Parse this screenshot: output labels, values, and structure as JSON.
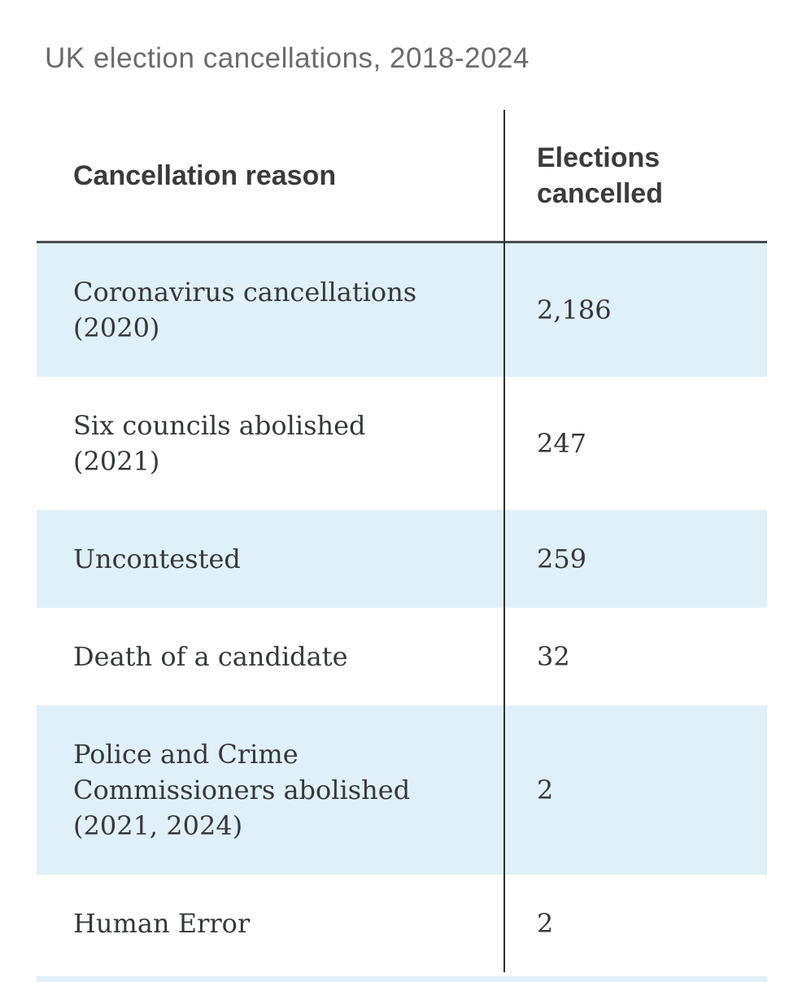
{
  "title": "UK election cancellations, 2018-2024",
  "table": {
    "header": {
      "reason_label": "Cancellation reason",
      "value_label": "Elections\ncancelled"
    },
    "rows": [
      {
        "reason": "Coronavirus cancellations\n(2020)",
        "value": "2,186",
        "highlighted": true
      },
      {
        "reason": "Six councils abolished\n(2021)",
        "value": "247",
        "highlighted": false
      },
      {
        "reason": "Uncontested",
        "value": "259",
        "highlighted": true
      },
      {
        "reason": "Death of a candidate",
        "value": "32",
        "highlighted": false
      },
      {
        "reason": "Police and Crime\nCommissioners abolished\n(2021, 2024)",
        "value": "2",
        "highlighted": true
      },
      {
        "reason": "Human Error",
        "value": "2",
        "highlighted": false
      }
    ]
  },
  "colors": {
    "highlight_row_bg": "#dff0f9",
    "divider_line": "#2c3034",
    "header_rule": "#454b50",
    "title_text": "#6b6b6b",
    "header_text": "#3b3b3b",
    "body_text": "#35383b",
    "background": "#ffffff"
  },
  "chart_data": {
    "type": "table",
    "title": "UK election cancellations, 2018-2024",
    "columns": [
      "Cancellation reason",
      "Elections cancelled"
    ],
    "categories": [
      "Coronavirus cancellations (2020)",
      "Six councils abolished (2021)",
      "Uncontested",
      "Death of a candidate",
      "Police and Crime Commissioners abolished (2021, 2024)",
      "Human Error"
    ],
    "values": [
      2186,
      247,
      259,
      32,
      2,
      2
    ],
    "layout_hints": {
      "alternating_row_highlight": "light blue on rows 1, 3, 5",
      "column_divider": "vertical dark line",
      "header_separator": "thick dark horizontal rule"
    }
  }
}
